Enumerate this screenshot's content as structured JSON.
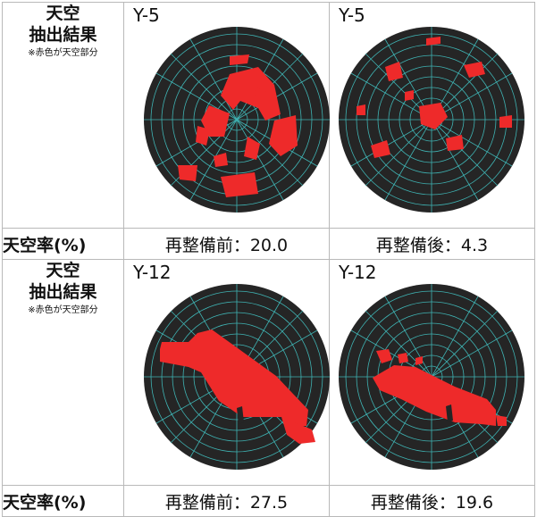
{
  "row_label": {
    "title_line1": "天空",
    "title_line2": "抽出結果",
    "note": "※赤色が天空部分"
  },
  "rate_label": "天空率(%)",
  "panels": [
    {
      "id": "Y-5",
      "before": "再整備前：20.0",
      "after": "再整備後：4.3"
    },
    {
      "id": "Y-12",
      "before": "再整備前：27.5",
      "after": "再整備後：19.6"
    }
  ],
  "colors": {
    "disc": "#252525",
    "grid": "#3fb3b3",
    "sky": "#ee2a2a",
    "border": "#b9b9b9"
  }
}
